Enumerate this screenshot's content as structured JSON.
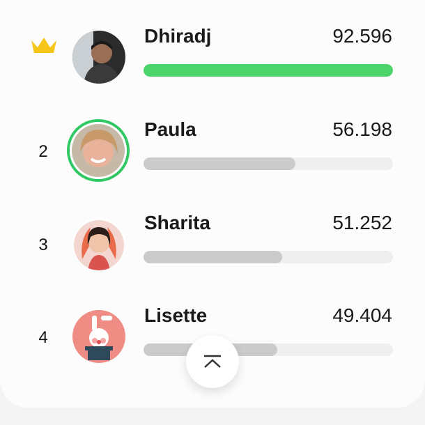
{
  "leaderboard": [
    {
      "rank": "",
      "badge": "crown-icon",
      "name": "Dhiradj",
      "score": "92.596",
      "progress": 1.0,
      "color": "#4cd46a",
      "avatar": "photo-man"
    },
    {
      "rank": "2",
      "name": "Paula",
      "score": "56.198",
      "progress": 0.61,
      "highlighted": true,
      "avatar": "photo-woman"
    },
    {
      "rank": "3",
      "name": "Sharita",
      "score": "51.252",
      "progress": 0.555,
      "avatar": "photo-woman-flame"
    },
    {
      "rank": "4",
      "name": "Lisette",
      "score": "49.404",
      "progress": 0.535,
      "avatar": "bunny-in-hat"
    }
  ],
  "scroll_top_button": {
    "icon": "chevron-up-bar-icon"
  },
  "colors": {
    "accent": "#2fc862",
    "crown": "#f5c518"
  }
}
